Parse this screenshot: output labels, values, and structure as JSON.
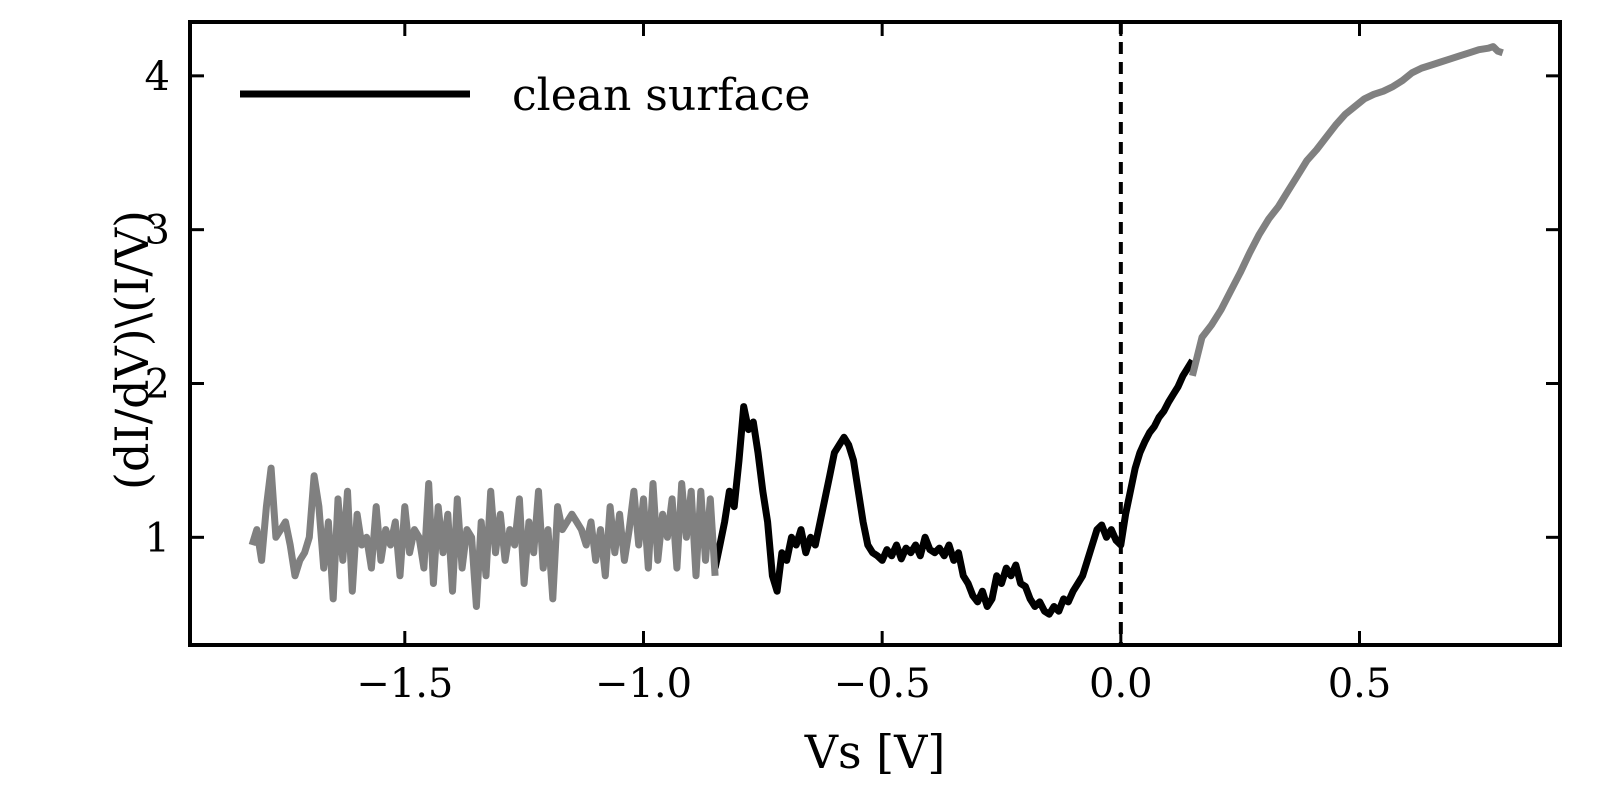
{
  "chart_data": {
    "type": "line",
    "title": "",
    "xlabel": "Vs [V]",
    "ylabel": "(dI/dV)\\(I/V)",
    "xlim": [
      -1.95,
      0.92
    ],
    "ylim": [
      0.3,
      4.35
    ],
    "xticks": [
      -1.5,
      -1.0,
      -0.5,
      0.0,
      0.5
    ],
    "xtick_labels": [
      "−1.5",
      "−1.0",
      "−0.5",
      "0.0",
      "0.5"
    ],
    "yticks": [
      1,
      2,
      3,
      4
    ],
    "ytick_labels": [
      "1",
      "2",
      "3",
      "4"
    ],
    "grid": false,
    "legend": {
      "placement": "top-left",
      "entries": [
        "clean surface"
      ]
    },
    "reference_lines": [
      {
        "axis": "x",
        "value": 0.0,
        "style": "dashed",
        "color": "#000000"
      }
    ],
    "colors": {
      "clean_surface": "#000000",
      "outside_range": "#808080"
    },
    "series": [
      {
        "name": "clean surface",
        "color": "#000000",
        "x": [
          -0.85,
          -0.84,
          -0.83,
          -0.82,
          -0.81,
          -0.8,
          -0.79,
          -0.78,
          -0.77,
          -0.76,
          -0.75,
          -0.74,
          -0.73,
          -0.72,
          -0.71,
          -0.7,
          -0.69,
          -0.68,
          -0.67,
          -0.66,
          -0.65,
          -0.64,
          -0.63,
          -0.62,
          -0.61,
          -0.6,
          -0.59,
          -0.58,
          -0.57,
          -0.56,
          -0.55,
          -0.54,
          -0.53,
          -0.52,
          -0.51,
          -0.5,
          -0.49,
          -0.48,
          -0.47,
          -0.46,
          -0.45,
          -0.44,
          -0.43,
          -0.42,
          -0.41,
          -0.4,
          -0.39,
          -0.38,
          -0.37,
          -0.36,
          -0.35,
          -0.34,
          -0.33,
          -0.32,
          -0.31,
          -0.3,
          -0.29,
          -0.28,
          -0.27,
          -0.26,
          -0.25,
          -0.24,
          -0.23,
          -0.22,
          -0.21,
          -0.2,
          -0.19,
          -0.18,
          -0.17,
          -0.16,
          -0.15,
          -0.14,
          -0.13,
          -0.12,
          -0.11,
          -0.1,
          -0.09,
          -0.08,
          -0.07,
          -0.06,
          -0.05,
          -0.04,
          -0.03,
          -0.02,
          -0.01,
          0.0,
          0.01,
          0.02,
          0.03,
          0.04,
          0.05,
          0.06,
          0.07,
          0.08,
          0.09,
          0.1,
          0.11,
          0.12,
          0.13,
          0.14,
          0.15
        ],
        "y": [
          0.8,
          0.95,
          1.1,
          1.3,
          1.2,
          1.5,
          1.85,
          1.7,
          1.75,
          1.55,
          1.3,
          1.1,
          0.75,
          0.65,
          0.9,
          0.85,
          1.0,
          0.95,
          1.05,
          0.9,
          1.0,
          0.95,
          1.1,
          1.25,
          1.4,
          1.55,
          1.6,
          1.65,
          1.6,
          1.5,
          1.3,
          1.1,
          0.95,
          0.9,
          0.88,
          0.85,
          0.92,
          0.88,
          0.95,
          0.86,
          0.93,
          0.9,
          0.95,
          0.88,
          1.0,
          0.92,
          0.9,
          0.93,
          0.88,
          0.95,
          0.85,
          0.9,
          0.75,
          0.7,
          0.62,
          0.58,
          0.65,
          0.55,
          0.6,
          0.75,
          0.7,
          0.8,
          0.75,
          0.82,
          0.7,
          0.68,
          0.6,
          0.55,
          0.58,
          0.52,
          0.5,
          0.55,
          0.52,
          0.6,
          0.58,
          0.65,
          0.7,
          0.75,
          0.85,
          0.95,
          1.05,
          1.08,
          1.0,
          1.05,
          0.98,
          0.95,
          1.15,
          1.3,
          1.45,
          1.55,
          1.62,
          1.68,
          1.72,
          1.78,
          1.82,
          1.88,
          1.93,
          1.98,
          2.05,
          2.1,
          2.15
        ]
      },
      {
        "name": "",
        "color": "#808080",
        "x": [
          -1.82,
          -1.81,
          -1.8,
          -1.79,
          -1.78,
          -1.77,
          -1.76,
          -1.75,
          -1.74,
          -1.73,
          -1.72,
          -1.71,
          -1.7,
          -1.69,
          -1.68,
          -1.67,
          -1.66,
          -1.65,
          -1.64,
          -1.63,
          -1.62,
          -1.61,
          -1.6,
          -1.59,
          -1.58,
          -1.57,
          -1.56,
          -1.55,
          -1.54,
          -1.53,
          -1.52,
          -1.51,
          -1.5,
          -1.49,
          -1.48,
          -1.47,
          -1.46,
          -1.45,
          -1.44,
          -1.43,
          -1.42,
          -1.41,
          -1.4,
          -1.39,
          -1.38,
          -1.37,
          -1.36,
          -1.35,
          -1.34,
          -1.33,
          -1.32,
          -1.31,
          -1.3,
          -1.29,
          -1.28,
          -1.27,
          -1.26,
          -1.25,
          -1.24,
          -1.23,
          -1.22,
          -1.21,
          -1.2,
          -1.19,
          -1.18,
          -1.17,
          -1.16,
          -1.15,
          -1.14,
          -1.13,
          -1.12,
          -1.11,
          -1.1,
          -1.09,
          -1.08,
          -1.07,
          -1.06,
          -1.05,
          -1.04,
          -1.03,
          -1.02,
          -1.01,
          -1.0,
          -0.99,
          -0.98,
          -0.97,
          -0.96,
          -0.95,
          -0.94,
          -0.93,
          -0.92,
          -0.91,
          -0.9,
          -0.89,
          -0.88,
          -0.87,
          -0.86,
          -0.85
        ],
        "y": [
          0.95,
          1.05,
          0.85,
          1.2,
          1.45,
          1.0,
          1.05,
          1.1,
          0.95,
          0.75,
          0.85,
          0.9,
          1.0,
          1.4,
          1.2,
          0.8,
          1.1,
          0.6,
          1.25,
          0.85,
          1.3,
          0.65,
          1.15,
          0.95,
          1.0,
          0.8,
          1.2,
          0.85,
          1.05,
          0.95,
          1.1,
          0.75,
          1.2,
          0.9,
          1.05,
          1.0,
          0.8,
          1.35,
          0.7,
          1.2,
          0.9,
          1.15,
          0.65,
          1.25,
          0.8,
          1.05,
          1.0,
          0.55,
          1.1,
          0.75,
          1.3,
          0.9,
          1.15,
          0.85,
          1.05,
          0.95,
          1.25,
          0.7,
          1.1,
          0.9,
          1.3,
          0.8,
          1.05,
          0.6,
          1.2,
          1.05,
          1.1,
          1.15,
          1.1,
          1.05,
          0.95,
          1.1,
          0.85,
          1.05,
          0.75,
          1.2,
          0.9,
          1.15,
          0.85,
          1.05,
          1.3,
          0.95,
          1.25,
          0.8,
          1.35,
          0.85,
          1.15,
          1.0,
          1.25,
          0.8,
          1.35,
          1.0,
          1.3,
          0.75,
          1.3,
          0.85,
          1.25,
          0.75
        ]
      },
      {
        "name": "",
        "color": "#808080",
        "x": [
          0.15,
          0.17,
          0.19,
          0.21,
          0.23,
          0.25,
          0.27,
          0.29,
          0.31,
          0.33,
          0.35,
          0.37,
          0.39,
          0.41,
          0.43,
          0.45,
          0.47,
          0.49,
          0.51,
          0.53,
          0.55,
          0.57,
          0.59,
          0.61,
          0.63,
          0.65,
          0.67,
          0.69,
          0.71,
          0.73,
          0.75,
          0.77,
          0.78,
          0.79,
          0.8
        ],
        "y": [
          2.05,
          2.3,
          2.38,
          2.48,
          2.6,
          2.72,
          2.85,
          2.97,
          3.07,
          3.15,
          3.25,
          3.35,
          3.45,
          3.52,
          3.6,
          3.68,
          3.75,
          3.8,
          3.85,
          3.88,
          3.9,
          3.93,
          3.97,
          4.02,
          4.05,
          4.07,
          4.09,
          4.11,
          4.13,
          4.15,
          4.17,
          4.18,
          4.19,
          4.16,
          4.15
        ]
      }
    ]
  }
}
